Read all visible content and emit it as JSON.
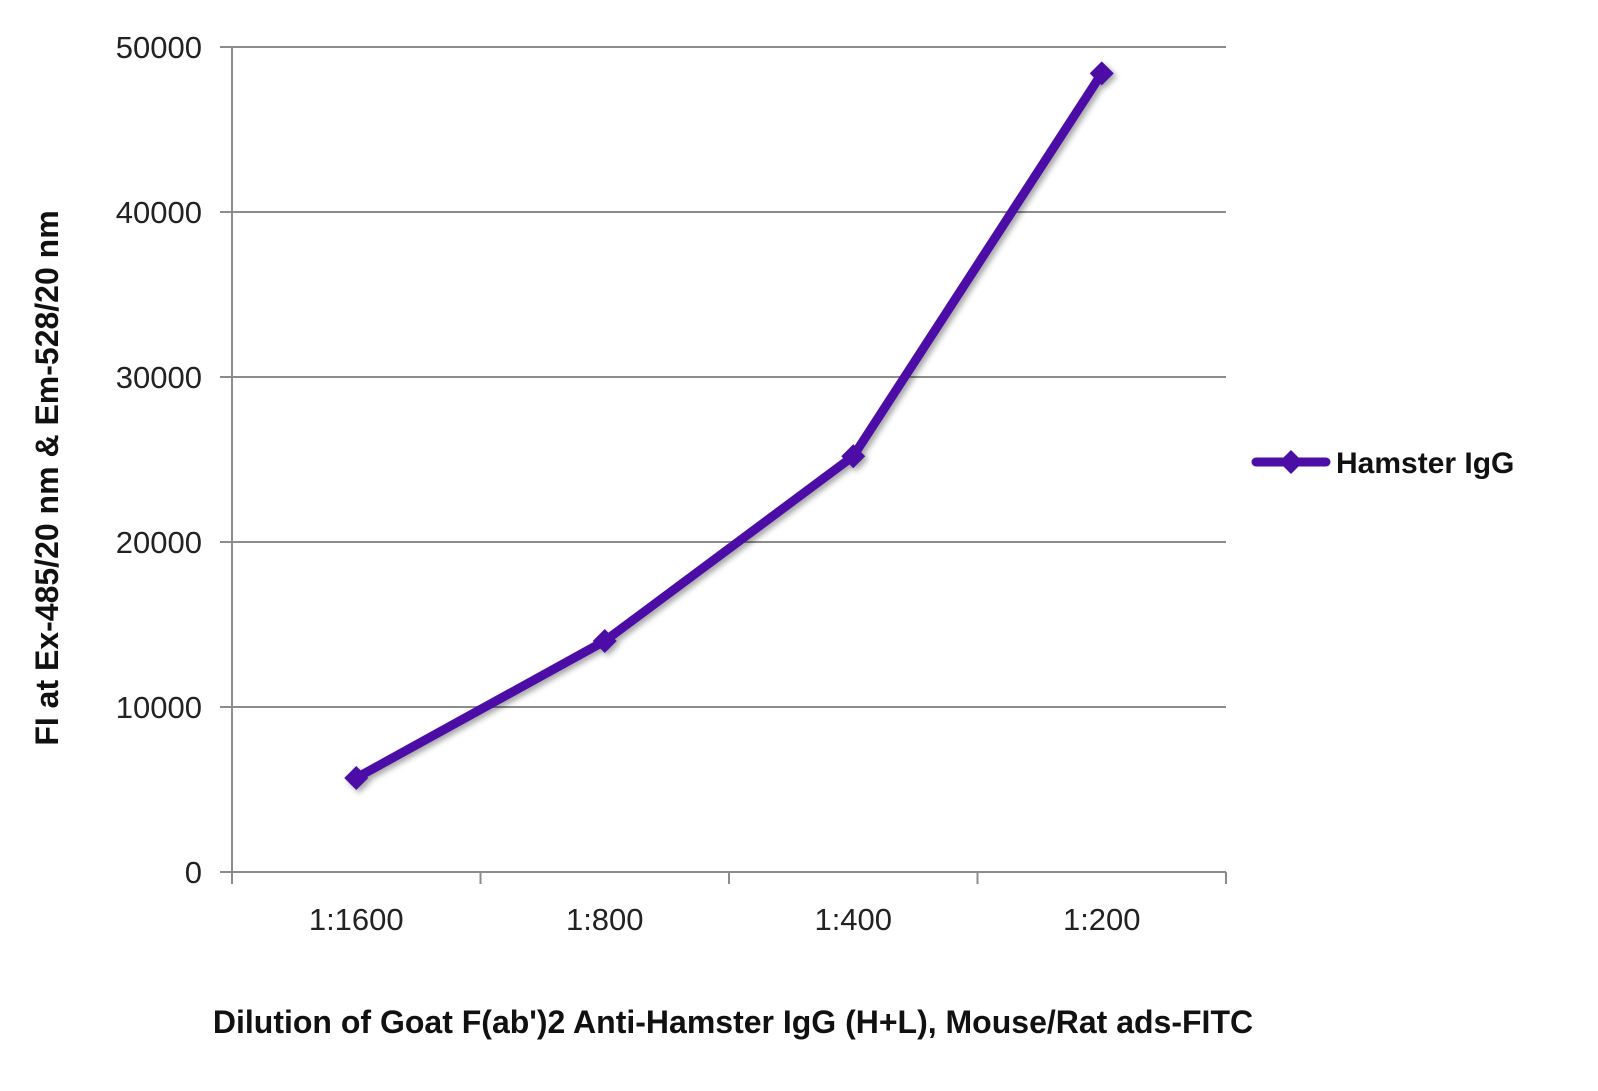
{
  "chart_data": {
    "type": "line",
    "categories": [
      "1:1600",
      "1:800",
      "1:400",
      "1:200"
    ],
    "series": [
      {
        "name": "Hamster IgG",
        "values": [
          5700,
          14000,
          25200,
          48400
        ],
        "color": "#4B0FA6",
        "marker": "diamond"
      }
    ],
    "xlabel": "Dilution of Goat F(ab')2 Anti-Hamster IgG (H+L), Mouse/Rat ads-FITC",
    "ylabel": "FI at Ex-485/20 nm & Em-528/20 nm",
    "ylim": [
      0,
      50000
    ],
    "yticks": [
      "0",
      "10000",
      "20000",
      "30000",
      "40000",
      "50000"
    ],
    "grid": "horizontal",
    "legend_position": "right",
    "gridline_color": "#8c8c8c"
  }
}
